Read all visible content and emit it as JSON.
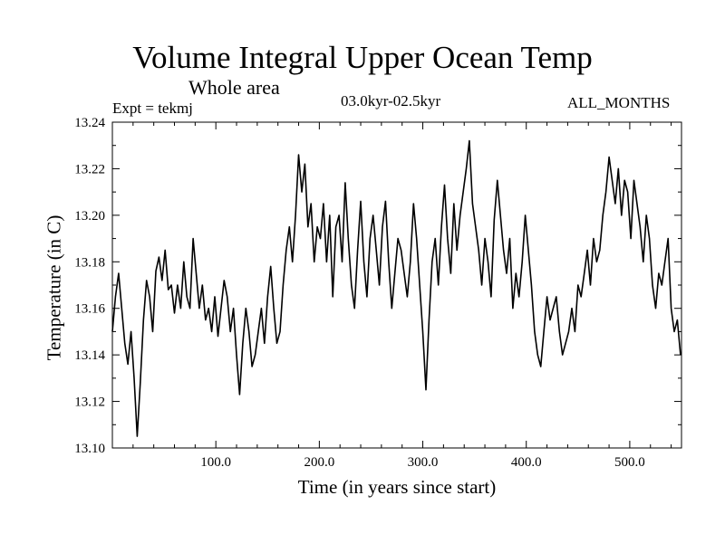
{
  "chart_data": {
    "type": "line",
    "title": "Volume Integral Upper Ocean Temp",
    "subtitle": "Whole area",
    "experiment": "Expt = tekmj",
    "period": "03.0kyr-02.5kyr",
    "months": "ALL_MONTHS",
    "xlabel": "Time (in years since start)",
    "ylabel": "Temperature (in C)",
    "xlim": [
      0,
      550
    ],
    "ylim": [
      13.1,
      13.24
    ],
    "xticks": [
      100,
      200,
      300,
      400,
      500
    ],
    "xtick_labels": [
      "100.0",
      "200.0",
      "300.0",
      "400.0",
      "500.0"
    ],
    "yticks": [
      13.1,
      13.12,
      13.14,
      13.16,
      13.18,
      13.2,
      13.22,
      13.24
    ],
    "ytick_labels": [
      "13.10",
      "13.12",
      "13.14",
      "13.16",
      "13.18",
      "13.20",
      "13.22",
      "13.24"
    ],
    "grid": false,
    "series": [
      {
        "name": "Temperature",
        "color": "#000000",
        "x": [
          0,
          3,
          6,
          9,
          12,
          15,
          18,
          21,
          24,
          27,
          30,
          33,
          36,
          39,
          42,
          45,
          48,
          51,
          54,
          57,
          60,
          63,
          66,
          69,
          72,
          75,
          78,
          81,
          84,
          87,
          90,
          93,
          96,
          99,
          102,
          105,
          108,
          111,
          114,
          117,
          120,
          123,
          126,
          129,
          132,
          135,
          138,
          141,
          144,
          147,
          150,
          153,
          156,
          159,
          162,
          165,
          168,
          171,
          174,
          177,
          180,
          183,
          186,
          189,
          192,
          195,
          198,
          201,
          204,
          207,
          210,
          213,
          216,
          219,
          222,
          225,
          228,
          231,
          234,
          237,
          240,
          243,
          246,
          249,
          252,
          255,
          258,
          261,
          264,
          267,
          270,
          273,
          276,
          279,
          282,
          285,
          288,
          291,
          294,
          297,
          300,
          303,
          306,
          309,
          312,
          315,
          318,
          321,
          324,
          327,
          330,
          333,
          336,
          339,
          342,
          345,
          348,
          351,
          354,
          357,
          360,
          363,
          366,
          369,
          372,
          375,
          378,
          381,
          384,
          387,
          390,
          393,
          396,
          399,
          402,
          405,
          408,
          411,
          414,
          417,
          420,
          423,
          426,
          429,
          432,
          435,
          438,
          441,
          444,
          447,
          450,
          453,
          456,
          459,
          462,
          465,
          468,
          471,
          474,
          477,
          480,
          483,
          486,
          489,
          492,
          495,
          498,
          501,
          504,
          507,
          510,
          513,
          516,
          519,
          522,
          525,
          528,
          531,
          534,
          537,
          540,
          543,
          546,
          549
        ],
        "values": [
          13.15,
          13.165,
          13.175,
          13.16,
          13.145,
          13.136,
          13.15,
          13.13,
          13.105,
          13.128,
          13.155,
          13.172,
          13.165,
          13.15,
          13.176,
          13.182,
          13.172,
          13.185,
          13.168,
          13.17,
          13.158,
          13.17,
          13.16,
          13.18,
          13.165,
          13.16,
          13.19,
          13.175,
          13.16,
          13.17,
          13.155,
          13.16,
          13.15,
          13.165,
          13.148,
          13.16,
          13.172,
          13.165,
          13.15,
          13.16,
          13.14,
          13.123,
          13.145,
          13.16,
          13.15,
          13.135,
          13.14,
          13.15,
          13.16,
          13.145,
          13.165,
          13.178,
          13.16,
          13.145,
          13.15,
          13.17,
          13.185,
          13.195,
          13.18,
          13.2,
          13.226,
          13.21,
          13.222,
          13.195,
          13.205,
          13.18,
          13.195,
          13.19,
          13.205,
          13.18,
          13.2,
          13.165,
          13.195,
          13.2,
          13.18,
          13.214,
          13.19,
          13.17,
          13.16,
          13.185,
          13.206,
          13.18,
          13.165,
          13.19,
          13.2,
          13.185,
          13.17,
          13.195,
          13.206,
          13.18,
          13.16,
          13.175,
          13.19,
          13.185,
          13.175,
          13.165,
          13.18,
          13.205,
          13.19,
          13.17,
          13.15,
          13.125,
          13.155,
          13.18,
          13.19,
          13.17,
          13.195,
          13.213,
          13.19,
          13.175,
          13.205,
          13.185,
          13.2,
          13.21,
          13.22,
          13.232,
          13.205,
          13.195,
          13.185,
          13.17,
          13.19,
          13.18,
          13.165,
          13.198,
          13.215,
          13.2,
          13.185,
          13.175,
          13.19,
          13.16,
          13.175,
          13.165,
          13.18,
          13.2,
          13.185,
          13.17,
          13.15,
          13.14,
          13.135,
          13.15,
          13.165,
          13.155,
          13.16,
          13.165,
          13.15,
          13.14,
          13.145,
          13.15,
          13.16,
          13.15,
          13.17,
          13.165,
          13.175,
          13.185,
          13.17,
          13.19,
          13.18,
          13.185,
          13.2,
          13.21,
          13.225,
          13.215,
          13.205,
          13.22,
          13.2,
          13.215,
          13.21,
          13.19,
          13.215,
          13.205,
          13.195,
          13.18,
          13.2,
          13.19,
          13.17,
          13.16,
          13.175,
          13.17,
          13.18,
          13.19,
          13.16,
          13.15,
          13.155,
          13.14
        ]
      }
    ]
  }
}
